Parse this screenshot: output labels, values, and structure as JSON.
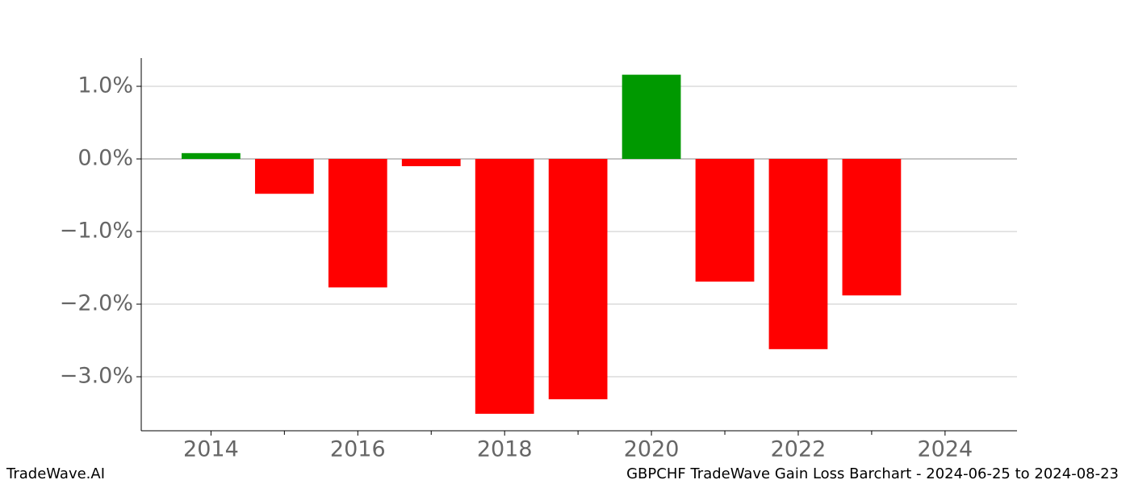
{
  "chart_data": {
    "type": "bar",
    "x": [
      2014,
      2015,
      2016,
      2017,
      2018,
      2019,
      2020,
      2021,
      2022,
      2023
    ],
    "values": [
      0.08,
      -0.48,
      -1.77,
      -0.1,
      -3.51,
      -3.31,
      1.16,
      -1.69,
      -2.62,
      -1.88
    ],
    "positive_color": "#009900",
    "negative_color": "#ff0000",
    "xlim": [
      2013.05,
      2024.98
    ],
    "xticks": [
      2014,
      2016,
      2018,
      2020,
      2022,
      2024
    ],
    "xminorticks": [
      2015,
      2017,
      2019,
      2021,
      2023
    ],
    "ylim": [
      -3.744,
      1.389
    ],
    "yticks": [
      {
        "value": 1,
        "label": "1.0%"
      },
      {
        "value": 0,
        "label": "0.0%"
      },
      {
        "value": -1,
        "label": "−1.0%"
      },
      {
        "value": -2,
        "label": "−2.0%"
      },
      {
        "value": -3,
        "label": "−3.0%"
      }
    ],
    "grid": true
  },
  "footer": {
    "left": "TradeWave.AI",
    "right": "GBPCHF TradeWave Gain Loss Barchart - 2024-06-25 to 2024-08-23"
  }
}
